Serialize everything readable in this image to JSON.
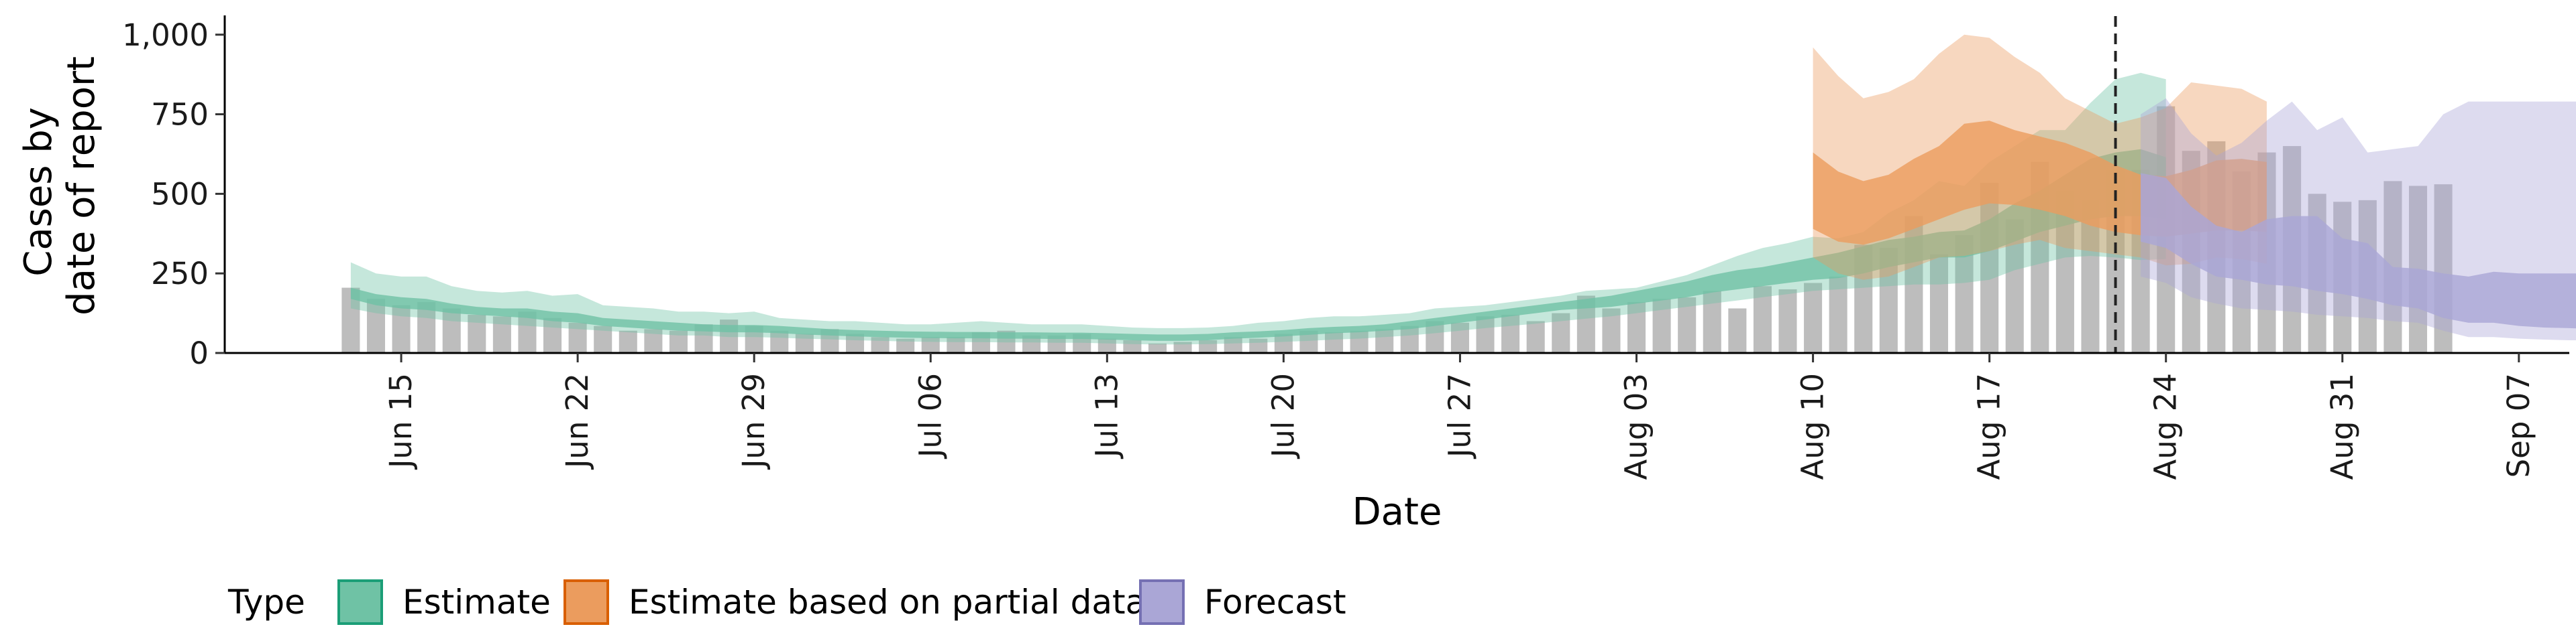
{
  "chart_data": {
    "type": "area",
    "xlabel": "Date",
    "ylabel": [
      "Cases by",
      "date of report"
    ],
    "ylim": [
      0,
      1050
    ],
    "yticks": [
      0,
      250,
      500,
      750,
      1000
    ],
    "ytick_labels": [
      "0",
      "250",
      "500",
      "750",
      "1,000"
    ],
    "x_ticks": [
      {
        "date": "2020-06-15",
        "label": "Jun 15"
      },
      {
        "date": "2020-06-22",
        "label": "Jun 22"
      },
      {
        "date": "2020-06-29",
        "label": "Jun 29"
      },
      {
        "date": "2020-07-06",
        "label": "Jul 06"
      },
      {
        "date": "2020-07-13",
        "label": "Jul 13"
      },
      {
        "date": "2020-07-20",
        "label": "Jul 20"
      },
      {
        "date": "2020-07-27",
        "label": "Jul 27"
      },
      {
        "date": "2020-08-03",
        "label": "Aug 03"
      },
      {
        "date": "2020-08-10",
        "label": "Aug 10"
      },
      {
        "date": "2020-08-17",
        "label": "Aug 17"
      },
      {
        "date": "2020-08-24",
        "label": "Aug 24"
      },
      {
        "date": "2020-08-31",
        "label": "Aug 31"
      },
      {
        "date": "2020-09-07",
        "label": "Sep 07"
      }
    ],
    "xlim": [
      "2020-06-08",
      "2020-09-09"
    ],
    "vline_date": "2020-08-22",
    "legend": {
      "title": "Type",
      "position": "bottom",
      "entries": [
        {
          "label": "Estimate",
          "fill": "#6fc2a5",
          "stroke": "#1b9e77"
        },
        {
          "label": "Estimate based on partial data",
          "fill": "#eb9c5e",
          "stroke": "#d95f02"
        },
        {
          "label": "Forecast",
          "fill": "#aaa6d6",
          "stroke": "#7570b3"
        }
      ]
    },
    "colors": {
      "bars": "#bdbdbd",
      "vline": "#222222"
    },
    "bars": {
      "start": "2020-06-13",
      "values": [
        205,
        170,
        150,
        160,
        140,
        120,
        115,
        130,
        110,
        95,
        85,
        70,
        75,
        70,
        90,
        105,
        85,
        70,
        60,
        75,
        60,
        50,
        45,
        50,
        50,
        65,
        70,
        55,
        55,
        60,
        45,
        40,
        30,
        35,
        40,
        50,
        45,
        60,
        70,
        65,
        70,
        75,
        85,
        100,
        95,
        115,
        120,
        100,
        125,
        180,
        140,
        160,
        170,
        175,
        195,
        140,
        210,
        200,
        220,
        240,
        340,
        330,
        430,
        310,
        370,
        535,
        420,
        600,
        510,
        480,
        575,
        575,
        775,
        635,
        665,
        570,
        630,
        650,
        500,
        475,
        480,
        540,
        525,
        530
      ]
    },
    "series": [
      {
        "name": "Estimate",
        "start": "2020-06-13",
        "outer_low": [
          140,
          125,
          115,
          110,
          100,
          95,
          90,
          85,
          80,
          75,
          70,
          65,
          60,
          55,
          55,
          50,
          50,
          48,
          45,
          43,
          40,
          38,
          36,
          35,
          34,
          34,
          33,
          33,
          32,
          32,
          30,
          28,
          27,
          27,
          28,
          30,
          32,
          35,
          38,
          42,
          45,
          50,
          55,
          62,
          70,
          78,
          85,
          92,
          100,
          108,
          115,
          125,
          135,
          145,
          155,
          165,
          175,
          185,
          195,
          200,
          205,
          210,
          215,
          215,
          220,
          230,
          260,
          280,
          300,
          305,
          300,
          292,
          295
        ],
        "outer_high": [
          285,
          250,
          240,
          240,
          210,
          195,
          190,
          195,
          180,
          185,
          150,
          145,
          140,
          130,
          130,
          125,
          130,
          110,
          105,
          100,
          100,
          95,
          90,
          90,
          95,
          100,
          95,
          90,
          90,
          90,
          85,
          80,
          78,
          78,
          80,
          85,
          95,
          100,
          110,
          115,
          115,
          120,
          125,
          140,
          145,
          150,
          160,
          170,
          180,
          195,
          200,
          205,
          225,
          245,
          275,
          305,
          330,
          345,
          365,
          360,
          380,
          440,
          480,
          540,
          525,
          600,
          650,
          700,
          700,
          785,
          860,
          880,
          860
        ],
        "inner_low": [
          170,
          150,
          140,
          135,
          125,
          120,
          115,
          110,
          100,
          95,
          85,
          80,
          75,
          70,
          68,
          65,
          65,
          62,
          58,
          55,
          52,
          50,
          48,
          47,
          46,
          46,
          45,
          45,
          44,
          44,
          42,
          40,
          38,
          38,
          40,
          45,
          48,
          52,
          57,
          62,
          65,
          70,
          75,
          85,
          95,
          105,
          115,
          125,
          135,
          140,
          145,
          155,
          165,
          175,
          190,
          200,
          210,
          220,
          230,
          235,
          250,
          270,
          285,
          300,
          300,
          320,
          350,
          380,
          400,
          420,
          430,
          430,
          420
        ],
        "inner_high": [
          205,
          185,
          175,
          170,
          155,
          145,
          140,
          140,
          130,
          125,
          110,
          105,
          100,
          95,
          90,
          88,
          88,
          85,
          80,
          75,
          72,
          70,
          68,
          67,
          66,
          66,
          65,
          65,
          64,
          64,
          62,
          60,
          58,
          58,
          60,
          65,
          68,
          72,
          78,
          82,
          85,
          90,
          100,
          110,
          120,
          130,
          140,
          150,
          160,
          170,
          180,
          195,
          210,
          225,
          245,
          260,
          270,
          285,
          300,
          315,
          335,
          355,
          365,
          380,
          385,
          420,
          470,
          510,
          560,
          610,
          630,
          640,
          615
        ]
      },
      {
        "name": "Estimate based on partial data",
        "start": "2020-08-10",
        "outer_low": [
          300,
          250,
          230,
          240,
          270,
          300,
          305,
          320,
          340,
          355,
          330,
          320,
          310,
          300,
          275,
          280,
          300,
          295,
          280
        ],
        "outer_high": [
          960,
          870,
          800,
          820,
          860,
          940,
          1000,
          990,
          930,
          880,
          800,
          760,
          720,
          740,
          770,
          850,
          840,
          830,
          790
        ],
        "inner_low": [
          390,
          350,
          340,
          360,
          390,
          420,
          450,
          470,
          465,
          450,
          430,
          400,
          380,
          370,
          365,
          375,
          385,
          385,
          380
        ],
        "inner_high": [
          630,
          570,
          540,
          560,
          610,
          650,
          720,
          730,
          700,
          680,
          660,
          630,
          590,
          560,
          555,
          575,
          605,
          610,
          600
        ]
      },
      {
        "name": "Forecast",
        "start": "2020-08-23",
        "outer_low": [
          240,
          220,
          175,
          155,
          140,
          135,
          130,
          120,
          115,
          110,
          100,
          95,
          70,
          50,
          50,
          45,
          42,
          40,
          40
        ],
        "outer_high": [
          750,
          800,
          690,
          620,
          660,
          730,
          790,
          700,
          740,
          630,
          640,
          650,
          750,
          790,
          790,
          790,
          790,
          790,
          790
        ],
        "inner_low": [
          350,
          330,
          280,
          240,
          230,
          215,
          210,
          195,
          185,
          170,
          150,
          140,
          110,
          95,
          95,
          85,
          80,
          78,
          75
        ],
        "inner_high": [
          565,
          550,
          460,
          400,
          380,
          420,
          430,
          430,
          360,
          345,
          270,
          265,
          250,
          240,
          255,
          250,
          250,
          250,
          250
        ]
      }
    ]
  }
}
